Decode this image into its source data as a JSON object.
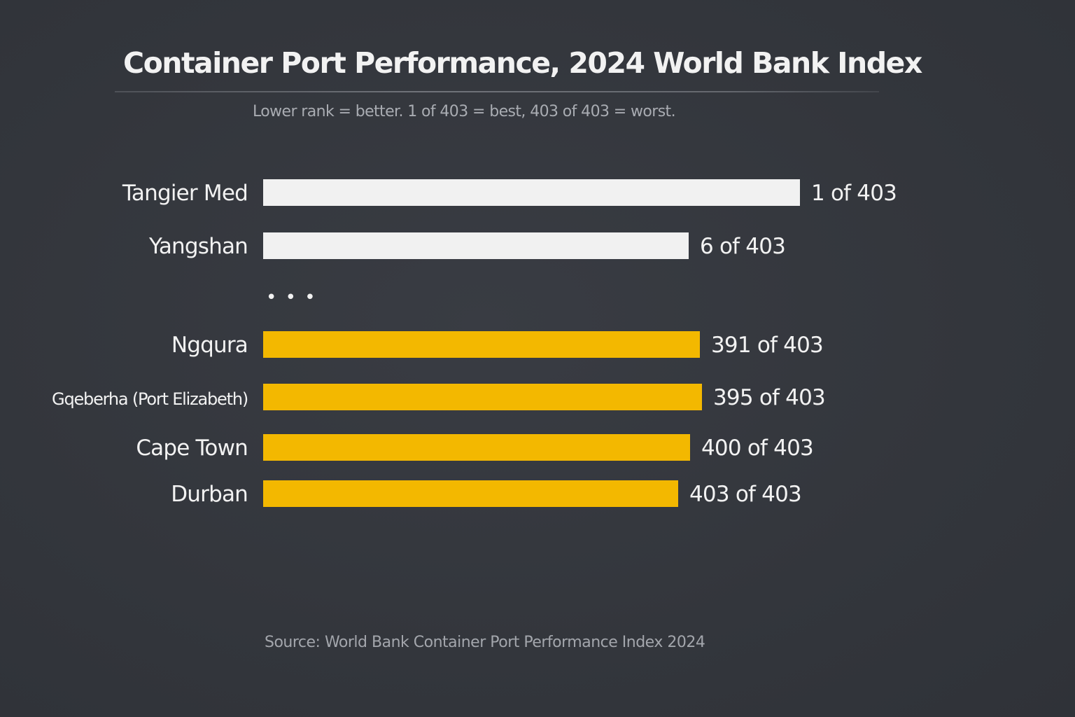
{
  "header": {
    "title": "Container Port Performance, 2024 World Bank Index",
    "subtitle": "Lower rank = better. 1 of 403 = best, 403 of 403 = worst."
  },
  "footer": {
    "source": "Source: World Bank Container Port Performance Index 2024"
  },
  "colors": {
    "top_ports": "#f1f1f1",
    "south_african_ports": "#f3b800",
    "label_text": "#f2f2f2",
    "background": "#34373e"
  },
  "chart_data": {
    "type": "bar",
    "orientation": "horizontal",
    "rank_total": 403,
    "categories": [
      "Tangier Med",
      "Yangshan",
      "Ngqura",
      "Gqeberha (Port Elizabeth)",
      "Cape Town",
      "Durban"
    ],
    "values": [
      1,
      6,
      391,
      395,
      400,
      403
    ],
    "value_labels": [
      "1 of 403",
      "6 of 403",
      "391 of 403",
      "395 of 403",
      "400 of 403",
      "403 of 403"
    ],
    "groups": [
      "top",
      "top",
      "south-africa",
      "south-africa",
      "south-africa",
      "south-africa"
    ],
    "gap_marker": "• • •",
    "gap_after_index": 1,
    "grid": false,
    "legend": "none"
  }
}
